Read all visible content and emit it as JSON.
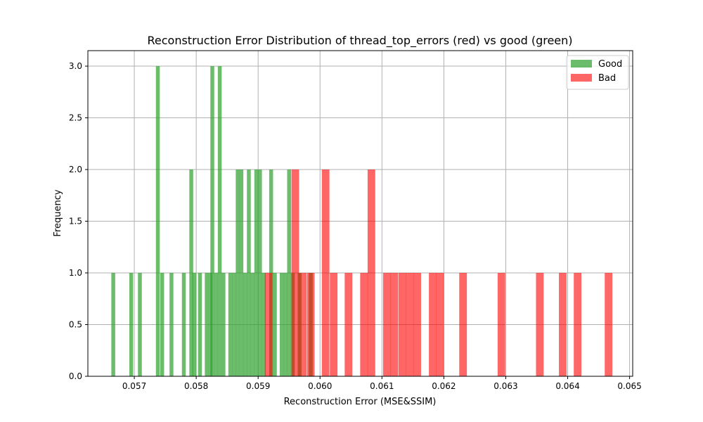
{
  "chart_data": {
    "type": "histogram",
    "title": "Reconstruction Error Distribution of thread_top_errors (red) vs good (green)",
    "xlabel": "Reconstruction Error (MSE&SSIM)",
    "ylabel": "Frequency",
    "xlim": [
      0.05625,
      0.06505
    ],
    "ylim": [
      0,
      3.15
    ],
    "xticks": [
      0.057,
      0.058,
      0.059,
      0.06,
      0.061,
      0.062,
      0.063,
      0.064,
      0.065
    ],
    "xtick_labels": [
      "0.057",
      "0.058",
      "0.059",
      "0.060",
      "0.061",
      "0.062",
      "0.063",
      "0.064",
      "0.065"
    ],
    "yticks": [
      0,
      0.5,
      1,
      1.5,
      2,
      2.5,
      3
    ],
    "ytick_labels": [
      "0.0",
      "0.5",
      "1.0",
      "1.5",
      "2.0",
      "2.5",
      "3.0"
    ],
    "grid": true,
    "legend_position": "top-right",
    "series": [
      {
        "name": "Good",
        "color": "#2ca02c",
        "opacity": 0.7,
        "bin_width": 6.25e-05,
        "bars": [
          {
            "x": 0.05666,
            "count": 1
          },
          {
            "x": 0.05695,
            "count": 1
          },
          {
            "x": 0.05709,
            "count": 1
          },
          {
            "x": 0.05738,
            "count": 3
          },
          {
            "x": 0.05745,
            "count": 1
          },
          {
            "x": 0.0576,
            "count": 1
          },
          {
            "x": 0.0578,
            "count": 1
          },
          {
            "x": 0.05792,
            "count": 2
          },
          {
            "x": 0.05797,
            "count": 1
          },
          {
            "x": 0.05806,
            "count": 1
          },
          {
            "x": 0.05817,
            "count": 1
          },
          {
            "x": 0.05823,
            "count": 1
          },
          {
            "x": 0.05826,
            "count": 3
          },
          {
            "x": 0.05832,
            "count": 1
          },
          {
            "x": 0.05838,
            "count": 3
          },
          {
            "x": 0.05844,
            "count": 1
          },
          {
            "x": 0.05855,
            "count": 1
          },
          {
            "x": 0.05861,
            "count": 1
          },
          {
            "x": 0.05867,
            "count": 2
          },
          {
            "x": 0.05873,
            "count": 2
          },
          {
            "x": 0.05879,
            "count": 1
          },
          {
            "x": 0.05885,
            "count": 2
          },
          {
            "x": 0.05891,
            "count": 1
          },
          {
            "x": 0.05897,
            "count": 2
          },
          {
            "x": 0.05903,
            "count": 2
          },
          {
            "x": 0.05909,
            "count": 1
          },
          {
            "x": 0.05921,
            "count": 2
          },
          {
            "x": 0.05927,
            "count": 1
          },
          {
            "x": 0.05938,
            "count": 1
          },
          {
            "x": 0.05944,
            "count": 1
          },
          {
            "x": 0.0595,
            "count": 2
          },
          {
            "x": 0.05956,
            "count": 1
          },
          {
            "x": 0.05967,
            "count": 1
          },
          {
            "x": 0.05985,
            "count": 1
          }
        ]
      },
      {
        "name": "Bad",
        "color": "#ff0000",
        "opacity": 0.6,
        "bin_width": 0.0001235,
        "bars": [
          {
            "x": 0.05917,
            "count": 1
          },
          {
            "x": 0.0596,
            "count": 2
          },
          {
            "x": 0.05972,
            "count": 1
          },
          {
            "x": 0.05985,
            "count": 1
          },
          {
            "x": 0.06009,
            "count": 2
          },
          {
            "x": 0.06022,
            "count": 1
          },
          {
            "x": 0.06046,
            "count": 1
          },
          {
            "x": 0.06071,
            "count": 1
          },
          {
            "x": 0.06083,
            "count": 2
          },
          {
            "x": 0.06108,
            "count": 1
          },
          {
            "x": 0.0612,
            "count": 1
          },
          {
            "x": 0.06133,
            "count": 1
          },
          {
            "x": 0.06145,
            "count": 1
          },
          {
            "x": 0.06157,
            "count": 1
          },
          {
            "x": 0.06182,
            "count": 1
          },
          {
            "x": 0.06194,
            "count": 1
          },
          {
            "x": 0.06231,
            "count": 1
          },
          {
            "x": 0.06293,
            "count": 1
          },
          {
            "x": 0.06355,
            "count": 1
          },
          {
            "x": 0.06392,
            "count": 1
          },
          {
            "x": 0.06416,
            "count": 1
          },
          {
            "x": 0.06466,
            "count": 1
          }
        ]
      }
    ]
  }
}
